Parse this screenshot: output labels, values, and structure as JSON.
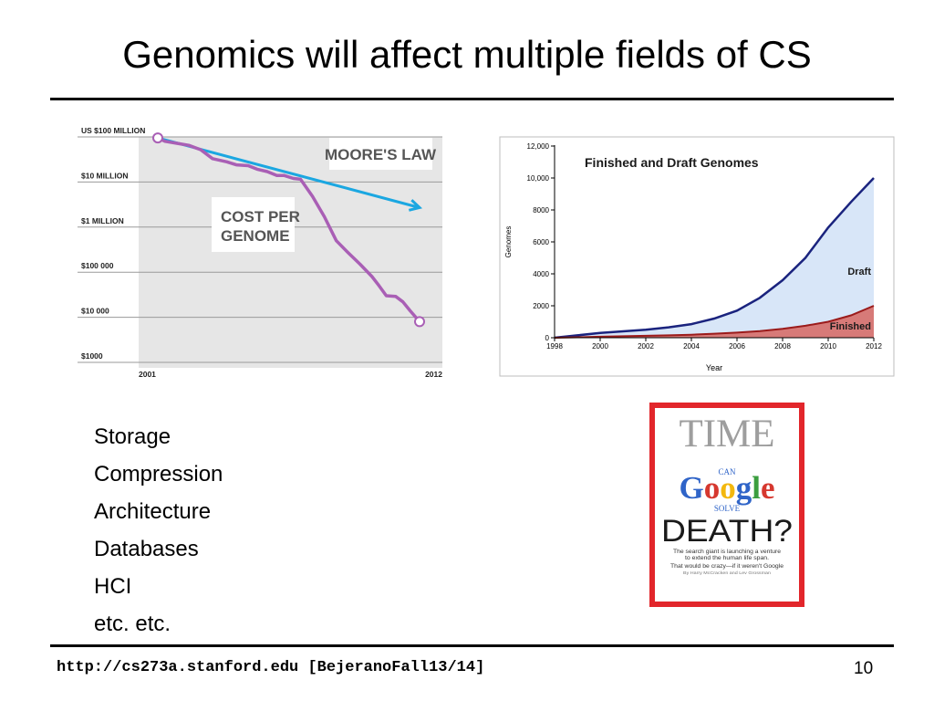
{
  "slide": {
    "title": "Genomics will affect multiple fields of CS",
    "bullets": [
      "Storage",
      "Compression",
      "Architecture",
      "Databases",
      "HCI",
      "etc. etc."
    ],
    "footer_url": "http://cs273a.stanford.edu [BejeranoFall13/14]",
    "page_number": "10"
  },
  "chart_data": [
    {
      "type": "line",
      "y_tick_labels": [
        "US $100 MILLION",
        "$10 MILLION",
        "$1 MILLION",
        "$100 000",
        "$10 000",
        "$1000"
      ],
      "x_tick_labels": [
        "2001",
        "2012"
      ],
      "xlim": [
        2001,
        2012
      ],
      "y_scale": "log",
      "ylim": [
        1000,
        100000000
      ],
      "series": [
        {
          "name": "COST PER GENOME",
          "color": "#a95fb5",
          "x": [
            2001.0,
            2001.3,
            2001.8,
            2002.3,
            2002.8,
            2003.3,
            2003.9,
            2004.3,
            2004.8,
            2005.2,
            2005.6,
            2006.0,
            2006.3,
            2006.7,
            2007.0,
            2007.5,
            2008.0,
            2008.5,
            2009.0,
            2009.5,
            2010.0,
            2010.3,
            2010.6,
            2011.0,
            2011.3,
            2011.6,
            2012.0
          ],
          "y": [
            95000000,
            80000000,
            72000000,
            65000000,
            52000000,
            33000000,
            28000000,
            24000000,
            23000000,
            19000000,
            17000000,
            14000000,
            14000000,
            12000000,
            11500000,
            4800000,
            1700000,
            500000,
            270000,
            150000,
            80000,
            50000,
            30000,
            29000,
            22000,
            14000,
            8000
          ]
        },
        {
          "name": "MOORE'S LAW",
          "color": "#1ba7e1",
          "x": [
            2001,
            2012
          ],
          "y": [
            95000000,
            2700000
          ]
        }
      ]
    },
    {
      "type": "area",
      "title": "Finished and Draft Genomes",
      "xlabel": "Year",
      "ylabel": "Genomes",
      "x_ticks": [
        "1998",
        "2000",
        "2002",
        "2004",
        "2006",
        "2008",
        "2010",
        "2012"
      ],
      "y_ticks": [
        "0",
        "2000",
        "4000",
        "6000",
        "8000",
        "10,000",
        "12,000"
      ],
      "xlim": [
        1998,
        2012
      ],
      "ylim": [
        0,
        12000
      ],
      "series": [
        {
          "name": "Draft",
          "color": "#1a237e",
          "fill": "#d8e6f8",
          "x": [
            1998,
            1999,
            2000,
            2001,
            2002,
            2003,
            2004,
            2005,
            2006,
            2007,
            2008,
            2009,
            2010,
            2011,
            2012
          ],
          "y": [
            0,
            150,
            300,
            400,
            500,
            650,
            850,
            1200,
            1700,
            2500,
            3600,
            5000,
            6900,
            8500,
            10000
          ]
        },
        {
          "name": "Finished",
          "color": "#9b1b1b",
          "fill": "#d77a78",
          "x": [
            1998,
            1999,
            2000,
            2001,
            2002,
            2003,
            2004,
            2005,
            2006,
            2007,
            2008,
            2009,
            2010,
            2011,
            2012
          ],
          "y": [
            0,
            30,
            60,
            90,
            120,
            150,
            190,
            250,
            320,
            420,
            560,
            750,
            1000,
            1400,
            2000
          ]
        }
      ]
    }
  ],
  "time_cover": {
    "masthead": "TIME",
    "line1": "CAN",
    "google_letters": [
      {
        "ch": "G",
        "color": "#2f64c8"
      },
      {
        "ch": "o",
        "color": "#d6382f"
      },
      {
        "ch": "o",
        "color": "#f3b80e"
      },
      {
        "ch": "g",
        "color": "#2f64c8"
      },
      {
        "ch": "l",
        "color": "#3b9e3f"
      },
      {
        "ch": "e",
        "color": "#d6382f"
      }
    ],
    "line2": "SOLVE",
    "headline": "DEATH?",
    "blurb1": "The search giant is launching a venture",
    "blurb2": "to extend the human life span.",
    "blurb3": "That would be crazy—if it weren't Google",
    "byline": "By Harry McCracken and Lev Grossman",
    "border_color": "#e2262b"
  }
}
